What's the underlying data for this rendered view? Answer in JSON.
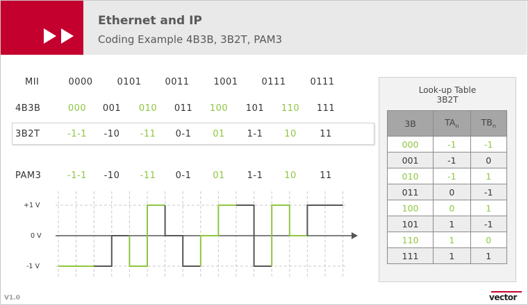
{
  "header": {
    "title": "Ethernet and IP",
    "subtitle": "Coding Example 4B3B, 3B2T, PAM3"
  },
  "rows": {
    "mii": {
      "label": "MII",
      "values": [
        "0000",
        "0101",
        "0011",
        "1001",
        "0111",
        "0111"
      ]
    },
    "b4b3": {
      "label": "4B3B",
      "values": [
        "000",
        "001",
        "010",
        "011",
        "100",
        "101",
        "110",
        "111"
      ]
    },
    "b3b2t": {
      "label": "3B2T",
      "values": [
        "-1-1",
        "-10",
        "-11",
        "0-1",
        "01",
        "1-1",
        "10",
        "11"
      ]
    },
    "pam3": {
      "label": "PAM3",
      "values": [
        "-1-1",
        "-10",
        "-11",
        "0-1",
        "01",
        "1-1",
        "10",
        "11"
      ]
    }
  },
  "levels": {
    "high": "+1 V",
    "zero": "0 V",
    "low": "-1 V"
  },
  "pam3_signal": [
    -1,
    -1,
    -1,
    0,
    -1,
    1,
    0,
    -1,
    0,
    1,
    1,
    -1,
    1,
    0,
    1,
    1
  ],
  "colors": {
    "accent_red": "#c4002f",
    "green": "#8dc63f",
    "dark": "#555555"
  },
  "lut": {
    "title_line1": "Look-up Table",
    "title_line2": "3B2T",
    "headers": {
      "col1": "3B",
      "col2_main": "TA",
      "col2_sub": "n",
      "col3_main": "TB",
      "col3_sub": "n"
    },
    "rows": [
      {
        "b": "000",
        "ta": "-1",
        "tb": "-1"
      },
      {
        "b": "001",
        "ta": "-1",
        "tb": "0"
      },
      {
        "b": "010",
        "ta": "-1",
        "tb": "1"
      },
      {
        "b": "011",
        "ta": "0",
        "tb": "-1"
      },
      {
        "b": "100",
        "ta": "0",
        "tb": "1"
      },
      {
        "b": "101",
        "ta": "1",
        "tb": "-1"
      },
      {
        "b": "110",
        "ta": "1",
        "tb": "0"
      },
      {
        "b": "111",
        "ta": "1",
        "tb": "1"
      }
    ]
  },
  "footer": {
    "version": "V1.0",
    "logo": "vector"
  }
}
